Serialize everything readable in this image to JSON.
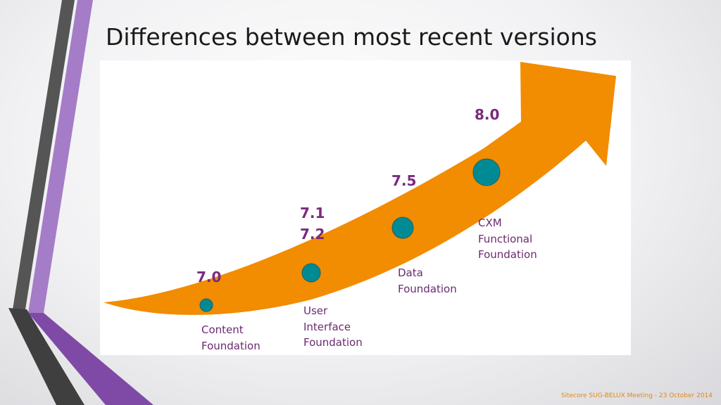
{
  "title": "Differences between most recent versions",
  "milestones": [
    {
      "version": "7.0",
      "lines": [
        "Content",
        "Foundation"
      ]
    },
    {
      "version": "7.1",
      "version2": "7.2",
      "lines": [
        "User",
        "Interface",
        "Foundation"
      ]
    },
    {
      "version": "7.5",
      "lines": [
        "Data",
        "Foundation"
      ]
    },
    {
      "version": "8.0",
      "lines": [
        "CXM",
        "Functional",
        "Foundation"
      ]
    }
  ],
  "footer": "Sitecore SUG-BELUX Meeting - 23 October 2014",
  "colors": {
    "arrow": "#f28c00",
    "node": "#008a94",
    "version_text": "#7a2a7e",
    "label_text": "#6b2a6f",
    "footer_text": "#e0891b",
    "deco_gray": "#555555",
    "deco_purple": "#9a6ac0"
  }
}
